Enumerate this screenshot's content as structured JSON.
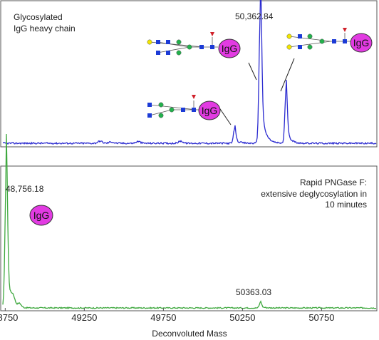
{
  "chart_data": [
    {
      "type": "line",
      "title": "Glycosylated IgG heavy chain",
      "title_lines": [
        "Glycosylated",
        "IgG heavy chain"
      ],
      "color": "#2b2bd0",
      "xlabel": "Deconvoluted Mass",
      "xlim": [
        48735,
        51095
      ],
      "ylim": [
        0,
        100
      ],
      "peaks": [
        {
          "mass": 50200,
          "intensity": 11,
          "label": ""
        },
        {
          "mass": 50362.84,
          "intensity": 100,
          "label": "50,362.84"
        },
        {
          "mass": 50525,
          "intensity": 39,
          "label": ""
        }
      ],
      "annotations": [
        {
          "type": "glycan-icon",
          "text": "IgG",
          "attached_peak": 50362.84
        },
        {
          "type": "glycan-icon",
          "text": "IgG",
          "attached_peak": 50525
        },
        {
          "type": "glycan-icon",
          "text": "IgG",
          "attached_peak": 50200
        }
      ]
    },
    {
      "type": "line",
      "annotation_lines": [
        "Rapid PNGase F:",
        "extensive deglycosylation in",
        "10 minutes"
      ],
      "color": "#3ea83e",
      "xlabel": "Deconvoluted Mass",
      "xlim": [
        48735,
        51095
      ],
      "ylim": [
        0,
        100
      ],
      "xticks": [
        48750,
        49250,
        49750,
        50250,
        50750
      ],
      "xtick_labels": [
        "48750",
        "49250",
        "49750",
        "50250",
        "50750"
      ],
      "peaks": [
        {
          "mass": 48756.18,
          "intensity": 100,
          "label": "48,756.18"
        },
        {
          "mass": 50363.03,
          "intensity": 4,
          "label": "50363.03"
        }
      ],
      "annotations": [
        {
          "type": "protein-icon",
          "text": "IgG",
          "attached_peak": 48756.18
        }
      ]
    }
  ]
}
